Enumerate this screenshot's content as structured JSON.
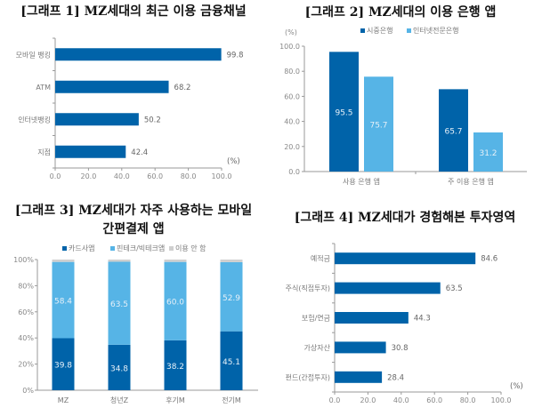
{
  "colors": {
    "dark": "#0063a9",
    "light": "#56b4e6",
    "gray": "#cfcfcf",
    "axis": "#999999"
  },
  "chart_data": [
    {
      "type": "bar",
      "orientation": "horizontal",
      "title": "[그래프 1] MZ세대의 최근 이용 금융채널",
      "categories": [
        "모바일 뱅킹",
        "ATM",
        "인터넷뱅킹",
        "지점"
      ],
      "values": [
        99.8,
        68.2,
        50.2,
        42.4
      ],
      "unit": "(%)",
      "xlim": [
        0,
        100
      ],
      "ticks": [
        "0.0",
        "20.0",
        "40.0",
        "60.0",
        "80.0",
        "100.0"
      ],
      "grid": false
    },
    {
      "type": "bar",
      "title": "[그래프 2] MZ세대의 이용 은행 앱",
      "unit": "(%)",
      "categories": [
        "사용 은행 앱",
        "주 이용 은행 앱"
      ],
      "series": [
        {
          "name": "시중은행",
          "values": [
            95.5,
            65.7
          ]
        },
        {
          "name": "인터넷전문은행",
          "values": [
            75.7,
            31.2
          ]
        }
      ],
      "ylim": [
        0,
        100
      ],
      "ticks": [
        "0.0",
        "20.0",
        "40.0",
        "60.0",
        "80.0",
        "100.0"
      ],
      "legend": "top",
      "grid": false
    },
    {
      "type": "bar",
      "stacked": true,
      "title": "[그래프 3] MZ세대가 자주 사용하는 모바일",
      "title2": "간편결제 앱",
      "categories": [
        "MZ",
        "청년Z",
        "후기M",
        "전기M"
      ],
      "series": [
        {
          "name": "카드사앱",
          "values": [
            39.8,
            34.8,
            38.2,
            45.1
          ]
        },
        {
          "name": "핀테크/빅테크앱",
          "values": [
            58.4,
            63.5,
            60.0,
            52.9
          ]
        },
        {
          "name": "이용 안 함",
          "values": [
            1.8,
            1.7,
            1.8,
            2.0
          ]
        }
      ],
      "ylim": [
        0,
        100
      ],
      "ticks": [
        "0%",
        "20%",
        "40%",
        "60%",
        "80%",
        "100%"
      ],
      "legend": "top",
      "grid": false
    },
    {
      "type": "bar",
      "orientation": "horizontal",
      "title": "[그래프 4] MZ세대가 경험해본 투자영역",
      "categories": [
        "예적금",
        "주식(직접투자)",
        "보험/연금",
        "가상자산",
        "펀드(간접투자)"
      ],
      "values": [
        84.6,
        63.5,
        44.3,
        30.8,
        28.4
      ],
      "unit": "(%)",
      "xlim": [
        0,
        100
      ],
      "ticks": [
        "0.0",
        "20.0",
        "40.0",
        "60.0",
        "80.0",
        "100.0"
      ],
      "grid": false
    }
  ]
}
